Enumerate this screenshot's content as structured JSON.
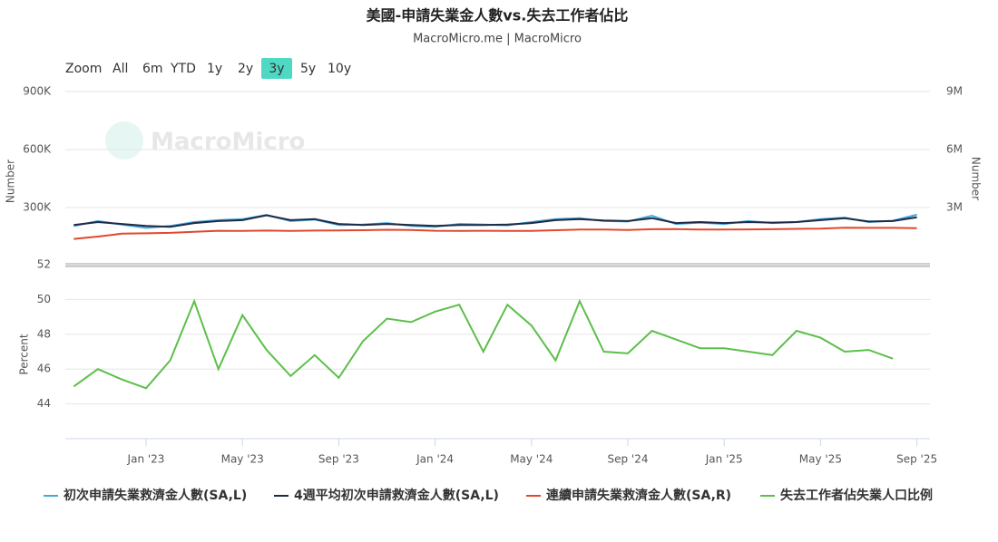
{
  "header": {
    "title": "美國-申請失業金人數vs.失去工作者佔比",
    "subtitle": "MacroMicro.me | MacroMicro",
    "watermark": "MacroMicro"
  },
  "range_selector": {
    "label": "Zoom",
    "buttons": [
      "All",
      "6m",
      "YTD",
      "1y",
      "2y",
      "3y",
      "5y",
      "10y"
    ],
    "active": "3y"
  },
  "chart_data": [
    {
      "type": "line",
      "y_label": "Number",
      "y2_label": "Number",
      "x": [
        "2022-10",
        "2022-11",
        "2022-12",
        "2023-01",
        "2023-02",
        "2023-03",
        "2023-04",
        "2023-05",
        "2023-06",
        "2023-07",
        "2023-08",
        "2023-09",
        "2023-10",
        "2023-11",
        "2023-12",
        "2024-01",
        "2024-02",
        "2024-03",
        "2024-04",
        "2024-05",
        "2024-06",
        "2024-07",
        "2024-08",
        "2024-09",
        "2024-10",
        "2024-11",
        "2024-12",
        "2025-01",
        "2025-02",
        "2025-03",
        "2025-04",
        "2025-05",
        "2025-06",
        "2025-07",
        "2025-08",
        "2025-09"
      ],
      "ylim": [
        0,
        900000
      ],
      "yticks": [
        {
          "value": 300000,
          "label": "300K"
        },
        {
          "value": 600000,
          "label": "600K"
        },
        {
          "value": 900000,
          "label": "900K"
        }
      ],
      "y2lim": [
        0,
        9000000
      ],
      "y2ticks": [
        {
          "value": 3000000,
          "label": "3M"
        },
        {
          "value": 6000000,
          "label": "6M"
        },
        {
          "value": 9000000,
          "label": "9M"
        }
      ],
      "grid": true,
      "series": [
        {
          "name": "初次申請失業救濟金人數(SA,L)",
          "color": "#3fa9e0",
          "values": [
            205000,
            230000,
            212000,
            195000,
            205000,
            225000,
            235000,
            240000,
            262000,
            230000,
            238000,
            210000,
            212000,
            220000,
            205000,
            200000,
            215000,
            212000,
            208000,
            225000,
            240000,
            245000,
            230000,
            228000,
            258000,
            215000,
            222000,
            215000,
            230000,
            220000,
            225000,
            240000,
            248000,
            225000,
            232000,
            263000
          ]
        },
        {
          "name": "4週平均初次申請救濟金人數(SA,L)",
          "color": "#1f2a44",
          "values": [
            210000,
            225000,
            215000,
            205000,
            200000,
            220000,
            230000,
            235000,
            260000,
            235000,
            240000,
            215000,
            210000,
            215000,
            210000,
            205000,
            210000,
            210000,
            212000,
            220000,
            235000,
            240000,
            233000,
            230000,
            245000,
            220000,
            225000,
            220000,
            225000,
            222000,
            225000,
            235000,
            245000,
            228000,
            230000,
            250000
          ]
        },
        {
          "name": "連續申請失業救濟金人數(SA,R)",
          "color": "#e0482c",
          "axis": "y2",
          "values": [
            1380000,
            1500000,
            1650000,
            1670000,
            1690000,
            1750000,
            1800000,
            1790000,
            1810000,
            1790000,
            1810000,
            1820000,
            1830000,
            1850000,
            1840000,
            1800000,
            1790000,
            1800000,
            1790000,
            1790000,
            1830000,
            1860000,
            1860000,
            1840000,
            1880000,
            1890000,
            1860000,
            1860000,
            1870000,
            1880000,
            1900000,
            1910000,
            1960000,
            1950000,
            1950000,
            1930000
          ]
        }
      ]
    },
    {
      "type": "line",
      "y_label": "Percent",
      "x": [
        "2022-10",
        "2022-11",
        "2022-12",
        "2023-01",
        "2023-02",
        "2023-03",
        "2023-04",
        "2023-05",
        "2023-06",
        "2023-07",
        "2023-08",
        "2023-09",
        "2023-10",
        "2023-11",
        "2023-12",
        "2024-01",
        "2024-02",
        "2024-03",
        "2024-04",
        "2024-05",
        "2024-06",
        "2024-07",
        "2024-08",
        "2024-09",
        "2024-10",
        "2024-11",
        "2024-12",
        "2025-01",
        "2025-02",
        "2025-03",
        "2025-04",
        "2025-05",
        "2025-06",
        "2025-07",
        "2025-08",
        "2025-09"
      ],
      "ylim": [
        42,
        52
      ],
      "yticks": [
        44,
        46,
        48,
        50,
        52
      ],
      "grid": true,
      "xticks": [
        {
          "value": "2023-01",
          "label": "Jan '23"
        },
        {
          "value": "2023-05",
          "label": "May '23"
        },
        {
          "value": "2023-09",
          "label": "Sep '23"
        },
        {
          "value": "2024-01",
          "label": "Jan '24"
        },
        {
          "value": "2024-05",
          "label": "May '24"
        },
        {
          "value": "2024-09",
          "label": "Sep '24"
        },
        {
          "value": "2025-01",
          "label": "Jan '25"
        },
        {
          "value": "2025-05",
          "label": "May '25"
        },
        {
          "value": "2025-09",
          "label": "Sep '25"
        }
      ],
      "series": [
        {
          "name": "失去工作者佔失業人口比例",
          "color": "#5cbf4a",
          "values": [
            45.0,
            46.0,
            45.4,
            44.9,
            46.5,
            49.9,
            46.0,
            49.1,
            47.1,
            45.6,
            46.8,
            45.5,
            47.6,
            48.9,
            48.7,
            49.3,
            49.7,
            47.0,
            49.7,
            48.5,
            46.5,
            49.9,
            47.0,
            46.9,
            48.2,
            47.7,
            47.2,
            47.2,
            47.0,
            46.8,
            48.2,
            47.8,
            47.0,
            47.1,
            46.6,
            null
          ]
        }
      ]
    }
  ]
}
